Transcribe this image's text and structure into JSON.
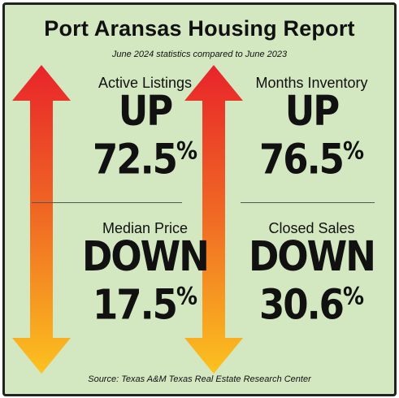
{
  "title": "Port Aransas Housing Report",
  "subtitle": "June 2024 statistics compared to June 2023",
  "colors": {
    "background": "#d3e8c1",
    "arrow_top": "#e8242a",
    "arrow_bottom": "#fcc21f",
    "text": "#111111"
  },
  "stats": [
    {
      "label": "Active Listings",
      "direction": "UP",
      "value": "72.5",
      "unit": "%"
    },
    {
      "label": "Months Inventory",
      "direction": "UP",
      "value": "76.5",
      "unit": "%"
    },
    {
      "label": "Median Price",
      "direction": "DOWN",
      "value": "17.5",
      "unit": "%"
    },
    {
      "label": "Closed Sales",
      "direction": "DOWN",
      "value": "30.6",
      "unit": "%"
    }
  ],
  "source": "Source: Texas A&M Texas Real Estate Research Center"
}
